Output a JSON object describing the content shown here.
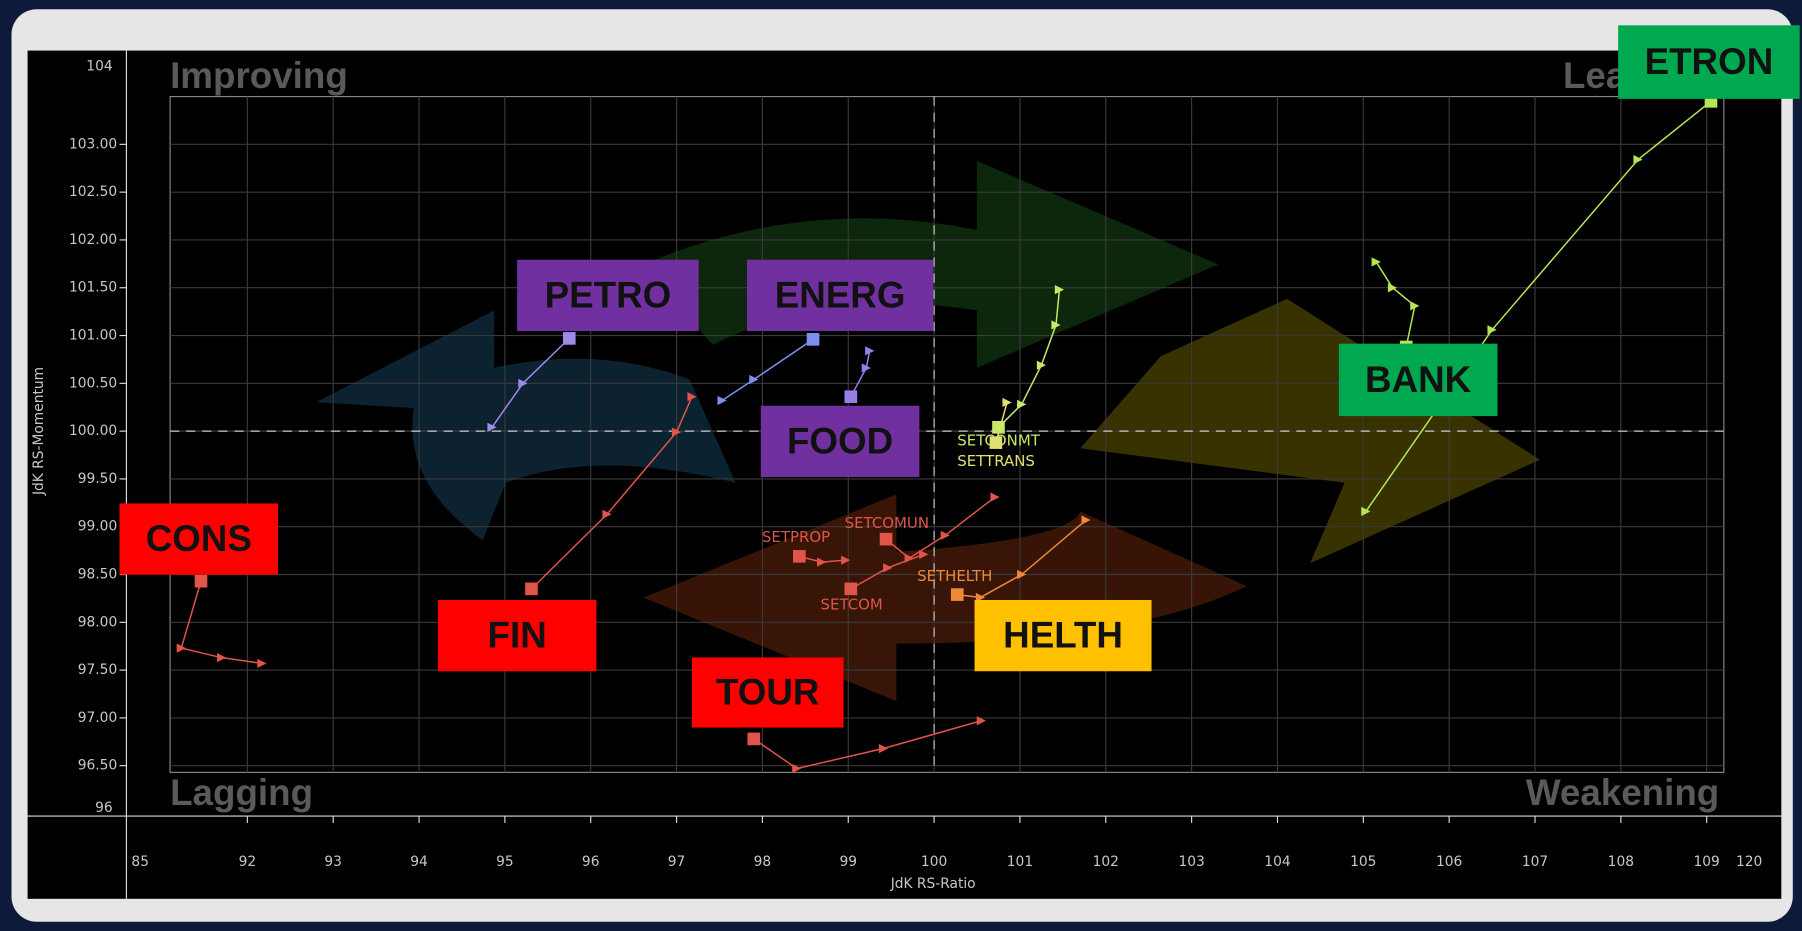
{
  "chart_data": {
    "type": "rrg",
    "x_label": "JdK RS-Ratio",
    "y_label": "JdK RS-Momentum",
    "quadrants": {
      "top_left": "Improving",
      "top_right": "Leading",
      "bottom_left": "Lagging",
      "bottom_right": "Weakening"
    },
    "axis_end_labels": {
      "x_min": "85",
      "x_max": "120",
      "y_min": "96",
      "y_max": "104"
    },
    "xlim": [
      91.1,
      109.2
    ],
    "ylim": [
      96.43,
      103.5
    ],
    "xticks": [
      92,
      93,
      94,
      95,
      96,
      97,
      98,
      99,
      100,
      101,
      102,
      103,
      104,
      105,
      106,
      107,
      108,
      109
    ],
    "yticks": [
      {
        "value": 96.5,
        "label": "96.50"
      },
      {
        "value": 97,
        "label": "97.00"
      },
      {
        "value": 97.5,
        "label": "97.50"
      },
      {
        "value": 98,
        "label": "98.00"
      },
      {
        "value": 98.5,
        "label": "98.50"
      },
      {
        "value": 99,
        "label": "99.00"
      },
      {
        "value": 99.5,
        "label": "99.50"
      },
      {
        "value": 100,
        "label": "100.00"
      },
      {
        "value": 100.5,
        "label": "100.50"
      },
      {
        "value": 101,
        "label": "101.00"
      },
      {
        "value": 101.5,
        "label": "101.50"
      },
      {
        "value": 102,
        "label": "102.00"
      },
      {
        "value": 102.5,
        "label": "102.50"
      },
      {
        "value": 103,
        "label": "103.00"
      }
    ],
    "grid": true,
    "crosshair": [
      100,
      100
    ],
    "series": [
      {
        "tag": "ETRON",
        "tag_color": "#00a850",
        "color": "#b5e655",
        "x": [
          105.03,
          106.5,
          108.2,
          109.05
        ],
        "y": [
          99.16,
          101.06,
          102.84,
          103.45
        ]
      },
      {
        "tag": "BANK",
        "tag_color": "#00a850",
        "color": "#b5e655",
        "x": [
          105.15,
          105.34,
          105.6,
          105.5
        ],
        "y": [
          101.77,
          101.5,
          101.31,
          100.88
        ]
      },
      {
        "label": "SETCONMT",
        "color": "#c8e86a",
        "x": [
          101.46,
          101.42,
          101.25,
          101.02,
          100.75
        ],
        "y": [
          101.48,
          101.11,
          100.69,
          100.28,
          100.04
        ]
      },
      {
        "label": "SETTRANS",
        "color": "#e0e070",
        "x": [
          100.85,
          100.72
        ],
        "y": [
          100.3,
          99.88
        ]
      },
      {
        "tag": "PETRO",
        "tag_color": "#7030a0",
        "color": "#a08ae8",
        "x": [
          94.85,
          95.21,
          95.75
        ],
        "y": [
          100.04,
          100.5,
          100.97
        ]
      },
      {
        "tag": "ENERG",
        "tag_color": "#7030a0",
        "color": "#7f8ff0",
        "x": [
          97.53,
          97.9,
          98.59
        ],
        "y": [
          100.32,
          100.54,
          100.96
        ]
      },
      {
        "tag": "FOOD",
        "tag_color": "#7030a0",
        "color": "#9a7ee8",
        "x": [
          99.25,
          99.21,
          99.03
        ],
        "y": [
          100.84,
          100.66,
          100.36
        ]
      },
      {
        "tag": "CONS",
        "tag_color": "#ff0000",
        "color": "#e0544a",
        "x": [
          92.17,
          91.7,
          91.23,
          91.46
        ],
        "y": [
          97.57,
          97.63,
          97.73,
          98.43
        ]
      },
      {
        "tag": "FIN",
        "tag_color": "#ff0000",
        "color": "#e0544a",
        "x": [
          97.18,
          97.0,
          96.19,
          95.31
        ],
        "y": [
          100.36,
          99.99,
          99.13,
          98.35
        ]
      },
      {
        "tag": "TOUR",
        "tag_color": "#ff0000",
        "color": "#e0544a",
        "x": [
          100.55,
          99.41,
          98.4,
          97.9
        ],
        "y": [
          96.97,
          96.68,
          96.47,
          96.78
        ]
      },
      {
        "label": "SETCOM",
        "color": "#e0544a",
        "x": [
          99.88,
          99.46,
          99.03
        ],
        "y": [
          98.71,
          98.57,
          98.35
        ]
      },
      {
        "label": "SETCOMUN",
        "color": "#e0544a",
        "x": [
          100.71,
          100.13,
          99.71,
          99.44
        ],
        "y": [
          99.31,
          98.91,
          98.67,
          98.87
        ]
      },
      {
        "label": "SETPROP",
        "color": "#e0544a",
        "x": [
          98.97,
          98.69,
          98.43
        ],
        "y": [
          98.65,
          98.63,
          98.69
        ]
      },
      {
        "tag": "HELTH",
        "tag_color": "#ffc000",
        "label": "SETHELTH",
        "color": "#f0883a",
        "x": [
          101.77,
          101.02,
          100.54,
          100.27
        ],
        "y": [
          99.07,
          98.5,
          98.26,
          98.29
        ]
      }
    ]
  }
}
